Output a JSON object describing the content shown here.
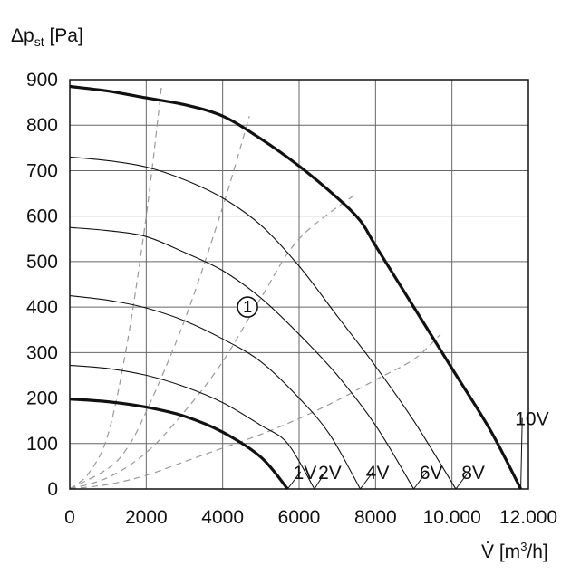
{
  "chart_data": {
    "type": "line",
    "ylabel": {
      "main": "Δp",
      "sub": "st",
      "unit": " [Pa]"
    },
    "xlabel": {
      "main": "V̇",
      "unit": " [m",
      "sup": "3",
      "tail": "/h]"
    },
    "xlim": [
      0,
      12000
    ],
    "ylim": [
      0,
      900
    ],
    "x_ticks": [
      {
        "v": 0,
        "label": "0"
      },
      {
        "v": 2000,
        "label": "2000"
      },
      {
        "v": 4000,
        "label": "4000"
      },
      {
        "v": 6000,
        "label": "6000"
      },
      {
        "v": 8000,
        "label": "8000"
      },
      {
        "v": 10000,
        "label": "10.000"
      },
      {
        "v": 12000,
        "label": "12.000"
      }
    ],
    "y_ticks": [
      {
        "v": 0,
        "label": "0"
      },
      {
        "v": 100,
        "label": "100"
      },
      {
        "v": 200,
        "label": "200"
      },
      {
        "v": 300,
        "label": "300"
      },
      {
        "v": 400,
        "label": "400"
      },
      {
        "v": 500,
        "label": "500"
      },
      {
        "v": 600,
        "label": "600"
      },
      {
        "v": 700,
        "label": "700"
      },
      {
        "v": 800,
        "label": "800"
      },
      {
        "v": 900,
        "label": "900"
      }
    ],
    "x_grid": [
      0,
      2000,
      4000,
      6000,
      8000,
      10000,
      12000
    ],
    "y_grid": [
      0,
      100,
      200,
      300,
      400,
      500,
      600,
      700,
      800,
      900
    ],
    "grid": true,
    "series": [
      {
        "name": "1V",
        "bold": true,
        "points": [
          [
            0,
            198
          ],
          [
            1000,
            192
          ],
          [
            2000,
            180
          ],
          [
            3000,
            160
          ],
          [
            4000,
            125
          ],
          [
            5000,
            70
          ],
          [
            5700,
            0
          ]
        ],
        "label_at": [
          5850,
          22
        ]
      },
      {
        "name": "2V",
        "bold": false,
        "points": [
          [
            0,
            272
          ],
          [
            1000,
            265
          ],
          [
            2000,
            250
          ],
          [
            3000,
            225
          ],
          [
            4000,
            190
          ],
          [
            5000,
            140
          ],
          [
            5700,
            100
          ],
          [
            6400,
            0
          ]
        ],
        "label_at": [
          6500,
          22
        ]
      },
      {
        "name": "4V",
        "bold": false,
        "points": [
          [
            0,
            425
          ],
          [
            1000,
            415
          ],
          [
            2000,
            398
          ],
          [
            3000,
            370
          ],
          [
            4000,
            330
          ],
          [
            5000,
            280
          ],
          [
            6000,
            200
          ],
          [
            6800,
            120
          ],
          [
            7600,
            0
          ]
        ],
        "label_at": [
          7750,
          22
        ]
      },
      {
        "name": "6V",
        "bold": false,
        "points": [
          [
            0,
            575
          ],
          [
            1000,
            568
          ],
          [
            2000,
            555
          ],
          [
            3000,
            520
          ],
          [
            4000,
            480
          ],
          [
            5000,
            420
          ],
          [
            6000,
            340
          ],
          [
            7000,
            250
          ],
          [
            8000,
            140
          ],
          [
            9000,
            0
          ]
        ],
        "label_at": [
          9150,
          22
        ]
      },
      {
        "name": "8V",
        "bold": false,
        "points": [
          [
            0,
            730
          ],
          [
            1000,
            722
          ],
          [
            2000,
            708
          ],
          [
            3000,
            680
          ],
          [
            4000,
            640
          ],
          [
            5000,
            580
          ],
          [
            6000,
            490
          ],
          [
            7000,
            380
          ],
          [
            8000,
            270
          ],
          [
            9000,
            150
          ],
          [
            10100,
            0
          ]
        ],
        "label_at": [
          10250,
          22
        ]
      },
      {
        "name": "10V",
        "bold": true,
        "points": [
          [
            0,
            885
          ],
          [
            1000,
            875
          ],
          [
            2000,
            860
          ],
          [
            3000,
            845
          ],
          [
            4000,
            820
          ],
          [
            5000,
            770
          ],
          [
            6000,
            710
          ],
          [
            7000,
            640
          ],
          [
            7600,
            590
          ],
          [
            8000,
            535
          ],
          [
            9000,
            400
          ],
          [
            10000,
            265
          ],
          [
            11000,
            130
          ],
          [
            11800,
            0
          ]
        ],
        "label_at": [
          11650,
          140
        ]
      }
    ],
    "system_curves": [
      {
        "name": "sc1",
        "points": [
          [
            0,
            0
          ],
          [
            500,
            35
          ],
          [
            1000,
            120
          ],
          [
            1500,
            320
          ],
          [
            2000,
            600
          ],
          [
            2400,
            885
          ]
        ]
      },
      {
        "name": "sc2",
        "points": [
          [
            0,
            0
          ],
          [
            1000,
            45
          ],
          [
            1500,
            90
          ],
          [
            2000,
            170
          ],
          [
            3000,
            370
          ],
          [
            4000,
            620
          ],
          [
            4700,
            820
          ]
        ]
      },
      {
        "name": "sc3",
        "points": [
          [
            0,
            0
          ],
          [
            1000,
            25
          ],
          [
            2000,
            80
          ],
          [
            3000,
            170
          ],
          [
            4000,
            280
          ],
          [
            5000,
            420
          ],
          [
            6000,
            550
          ],
          [
            7500,
            650
          ]
        ]
      },
      {
        "name": "sc4",
        "points": [
          [
            0,
            0
          ],
          [
            1000,
            10
          ],
          [
            2000,
            30
          ],
          [
            3000,
            60
          ],
          [
            4000,
            90
          ],
          [
            5000,
            120
          ],
          [
            6000,
            155
          ],
          [
            7000,
            195
          ],
          [
            8000,
            240
          ],
          [
            9000,
            285
          ],
          [
            9700,
            340
          ]
        ]
      }
    ],
    "annotation": {
      "text": "1",
      "at": [
        4650,
        400
      ]
    }
  }
}
